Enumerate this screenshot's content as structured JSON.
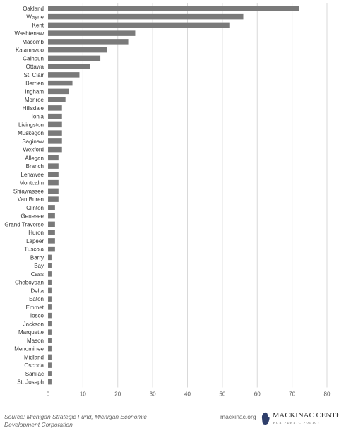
{
  "chart_data": {
    "type": "bar",
    "orientation": "horizontal",
    "title": "",
    "xlabel": "",
    "ylabel": "",
    "xlim": [
      0,
      80
    ],
    "x_ticks": [
      0,
      10,
      20,
      30,
      40,
      50,
      60,
      70,
      80
    ],
    "grid": "vertical",
    "bar_color": "#7a7a7a",
    "grid_color": "#d9d9d9",
    "categories": [
      "Oakland",
      "Wayne",
      "Kent",
      "Washtenaw",
      "Macomb",
      "Kalamazoo",
      "Calhoun",
      "Ottawa",
      "St. Clair",
      "Berrien",
      "Ingham",
      "Monroe",
      "Hillsdale",
      "Ionia",
      "Livingston",
      "Muskegon",
      "Saginaw",
      "Wexford",
      "Allegan",
      "Branch",
      "Lenawee",
      "Montcalm",
      "Shiawassee",
      "Van Buren",
      "Clinton",
      "Genesee",
      "Grand Traverse",
      "Huron",
      "Lapeer",
      "Tuscola",
      "Barry",
      "Bay",
      "Cass",
      "Cheboygan",
      "Delta",
      "Eaton",
      "Emmet",
      "Iosco",
      "Jackson",
      "Marquette",
      "Mason",
      "Menominee",
      "Midland",
      "Oscoda",
      "Sanilac",
      "St. Joseph"
    ],
    "values": [
      72,
      56,
      52,
      25,
      23,
      17,
      15,
      12,
      9,
      7,
      6,
      5,
      4,
      4,
      4,
      4,
      4,
      4,
      3,
      3,
      3,
      3,
      3,
      3,
      2,
      2,
      2,
      2,
      2,
      2,
      1,
      1,
      1,
      1,
      1,
      1,
      1,
      1,
      1,
      1,
      1,
      1,
      1,
      1,
      1,
      1
    ]
  },
  "footer": {
    "source": "Source: Michigan Strategic Fund, Michigan Economic Development Corporation",
    "site": "mackinac.org"
  },
  "logo": {
    "name": "MACKINAC CENTER",
    "tagline": "FOR PUBLIC POLICY"
  }
}
